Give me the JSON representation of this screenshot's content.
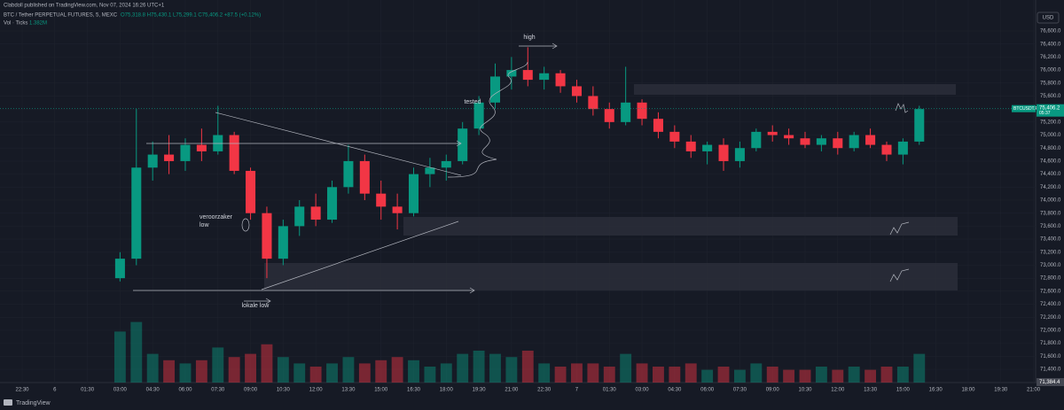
{
  "header": {
    "publisher": "Clabdoll published on TradingView.com, Nov 07, 2024 16:26 UTC+1",
    "symbol": "BTC / Tether PERPETUAL FUTURES, 5, MEXC",
    "ohlc": "O75,318.8 H75,430.1 L75,299.1 C75,406.2 +87.5 (+0.12%)",
    "volume_label": "Vol · Ticks",
    "volume_value": "1.382M",
    "currency": "USD",
    "brand": "TradingView"
  },
  "chart_data": {
    "type": "candlestick",
    "up_color": "#089981",
    "down_color": "#f23645",
    "x": [
      4.5,
      5.25,
      6,
      6.75,
      7.5,
      8.25,
      9,
      9.75,
      10.5,
      11.25,
      12,
      12.75,
      13.5,
      14.25,
      15,
      15.75,
      16.5,
      17.25,
      18,
      18.75,
      19.5,
      20.25,
      21,
      21.75,
      22.5,
      23.25,
      24,
      24.75,
      25.5,
      26.25,
      27,
      27.75,
      28.5,
      29.25,
      30,
      30.75,
      31.5,
      32.25,
      33,
      33.75,
      34.5,
      35.25,
      36,
      36.75,
      37.5,
      38.25,
      39,
      39.75,
      40.5,
      41.25
    ],
    "candles": [
      [
        72800,
        73200,
        72750,
        73100
      ],
      [
        73100,
        75400,
        73000,
        74500
      ],
      [
        74500,
        74900,
        74300,
        74700
      ],
      [
        74700,
        75000,
        74400,
        74600
      ],
      [
        74600,
        74950,
        74450,
        74850
      ],
      [
        74850,
        75100,
        74600,
        74750
      ],
      [
        74750,
        75450,
        74700,
        75000
      ],
      [
        75000,
        75050,
        74400,
        74450
      ],
      [
        74450,
        74500,
        73700,
        73800
      ],
      [
        73800,
        73900,
        72800,
        73100
      ],
      [
        73100,
        73700,
        73000,
        73600
      ],
      [
        73600,
        74000,
        73450,
        73900
      ],
      [
        73900,
        74100,
        73600,
        73700
      ],
      [
        73700,
        74300,
        73650,
        74200
      ],
      [
        74200,
        74850,
        74100,
        74600
      ],
      [
        74600,
        74700,
        74000,
        74100
      ],
      [
        74100,
        74300,
        73700,
        73900
      ],
      [
        73900,
        74100,
        73550,
        73800
      ],
      [
        73800,
        74500,
        73750,
        74400
      ],
      [
        74400,
        74650,
        74200,
        74500
      ],
      [
        74500,
        74700,
        74300,
        74600
      ],
      [
        74600,
        75200,
        74550,
        75100
      ],
      [
        75100,
        75600,
        75000,
        75500
      ],
      [
        75500,
        76100,
        75400,
        75900
      ],
      [
        75900,
        76200,
        75700,
        76000
      ],
      [
        76000,
        76350,
        75750,
        75850
      ],
      [
        75850,
        76050,
        75700,
        75950
      ],
      [
        75950,
        76000,
        75650,
        75750
      ],
      [
        75750,
        75850,
        75500,
        75600
      ],
      [
        75600,
        75750,
        75300,
        75400
      ],
      [
        75400,
        75500,
        75100,
        75200
      ],
      [
        75200,
        76050,
        75150,
        75500
      ],
      [
        75500,
        75550,
        75150,
        75250
      ],
      [
        75250,
        75350,
        74950,
        75050
      ],
      [
        75050,
        75150,
        74800,
        74900
      ],
      [
        74900,
        75000,
        74650,
        74750
      ],
      [
        74750,
        74900,
        74550,
        74850
      ],
      [
        74850,
        74950,
        74450,
        74600
      ],
      [
        74600,
        74900,
        74500,
        74800
      ],
      [
        74800,
        75100,
        74750,
        75050
      ],
      [
        75050,
        75150,
        74900,
        75000
      ],
      [
        75000,
        75100,
        74850,
        74950
      ],
      [
        74950,
        75050,
        74800,
        74850
      ],
      [
        74850,
        75000,
        74750,
        74950
      ],
      [
        74950,
        75050,
        74700,
        74800
      ],
      [
        74800,
        75050,
        74750,
        75000
      ],
      [
        75000,
        75100,
        74800,
        74850
      ],
      [
        74850,
        74900,
        74600,
        74700
      ],
      [
        74700,
        74950,
        74550,
        74900
      ],
      [
        74900,
        75450,
        74850,
        75400
      ]
    ],
    "volume": [
      16000,
      19000,
      9000,
      7000,
      6000,
      7000,
      11000,
      8000,
      9000,
      12000,
      8000,
      6000,
      5000,
      6000,
      8000,
      6000,
      7000,
      8000,
      7000,
      5000,
      6000,
      9000,
      10000,
      9000,
      8000,
      10000,
      6000,
      5000,
      6000,
      6000,
      5000,
      9000,
      6000,
      5000,
      5000,
      6000,
      4000,
      5000,
      4000,
      6000,
      5000,
      4000,
      4000,
      5000,
      4000,
      5000,
      4000,
      5000,
      5000,
      9000
    ],
    "vlim": [
      0,
      20000
    ],
    "last_price": {
      "value": 75406.2,
      "label": "75,406.2"
    },
    "last_symbol": "BTCUSDT.P",
    "countdown": "05:37",
    "bottom_label": "71,384.4",
    "xlim": [
      -1.02,
      46.6
    ],
    "ylim": [
      71196,
      76736
    ],
    "yticks": [
      {
        "value": 71400,
        "label": "71,400.0"
      },
      {
        "value": 71600,
        "label": "71,600.0"
      },
      {
        "value": 71800,
        "label": "71,800.0"
      },
      {
        "value": 72000,
        "label": "72,000.0"
      },
      {
        "value": 72200,
        "label": "72,200.0"
      },
      {
        "value": 72400,
        "label": "72,400.0"
      },
      {
        "value": 72600,
        "label": "72,600.0"
      },
      {
        "value": 72800,
        "label": "72,800.0"
      },
      {
        "value": 73000,
        "label": "73,000.0"
      },
      {
        "value": 73200,
        "label": "73,200.0"
      },
      {
        "value": 73400,
        "label": "73,400.0"
      },
      {
        "value": 73600,
        "label": "73,600.0"
      },
      {
        "value": 73800,
        "label": "73,800.0"
      },
      {
        "value": 74000,
        "label": "74,000.0"
      },
      {
        "value": 74200,
        "label": "74,200.0"
      },
      {
        "value": 74400,
        "label": "74,400.0"
      },
      {
        "value": 74600,
        "label": "74,600.0"
      },
      {
        "value": 74800,
        "label": "74,800.0"
      },
      {
        "value": 75000,
        "label": "75,000.0"
      },
      {
        "value": 75200,
        "label": "75,200.0"
      },
      {
        "value": 75400,
        "label": "75,400.0"
      },
      {
        "value": 75600,
        "label": "75,600.0"
      },
      {
        "value": 75800,
        "label": "75,800.0"
      },
      {
        "value": 76000,
        "label": "76,000.0"
      },
      {
        "value": 76200,
        "label": "76,200.0"
      },
      {
        "value": 76400,
        "label": "76,400.0"
      },
      {
        "value": 76600,
        "label": "76,600.0"
      }
    ],
    "xticks": [
      {
        "value": 0,
        "label": "22:30"
      },
      {
        "value": 1.5,
        "label": "6"
      },
      {
        "value": 3,
        "label": "01:30"
      },
      {
        "value": 4.5,
        "label": "03:00"
      },
      {
        "value": 6,
        "label": "04:30"
      },
      {
        "value": 7.5,
        "label": "06:00"
      },
      {
        "value": 9,
        "label": "07:30"
      },
      {
        "value": 10.5,
        "label": "09:00"
      },
      {
        "value": 12,
        "label": "10:30"
      },
      {
        "value": 13.5,
        "label": "12:00"
      },
      {
        "value": 15,
        "label": "13:30"
      },
      {
        "value": 16.5,
        "label": "15:00"
      },
      {
        "value": 18,
        "label": "16:30"
      },
      {
        "value": 19.5,
        "label": "18:00"
      },
      {
        "value": 21,
        "label": "19:30"
      },
      {
        "value": 22.5,
        "label": "21:00"
      },
      {
        "value": 24,
        "label": "22:30"
      },
      {
        "value": 25.5,
        "label": "7"
      },
      {
        "value": 27,
        "label": "01:30"
      },
      {
        "value": 28.5,
        "label": "03:00"
      },
      {
        "value": 30,
        "label": "04:30"
      },
      {
        "value": 31.5,
        "label": "06:00"
      },
      {
        "value": 33,
        "label": "07:30"
      },
      {
        "value": 34.5,
        "label": "09:00"
      },
      {
        "value": 36,
        "label": "10:30"
      },
      {
        "value": 37.5,
        "label": "12:00"
      },
      {
        "value": 39,
        "label": "13:30"
      },
      {
        "value": 40.5,
        "label": "15:00"
      },
      {
        "value": 42,
        "label": "16:30"
      },
      {
        "value": 43.5,
        "label": "18:00"
      },
      {
        "value": 45,
        "label": "19:30"
      },
      {
        "value": 46.5,
        "label": "21:00"
      }
    ],
    "annotations": {
      "high": "high",
      "tested": "tested",
      "cause_1": "veroorzaker",
      "cause_2": "low",
      "local_low": "lokale low"
    }
  }
}
